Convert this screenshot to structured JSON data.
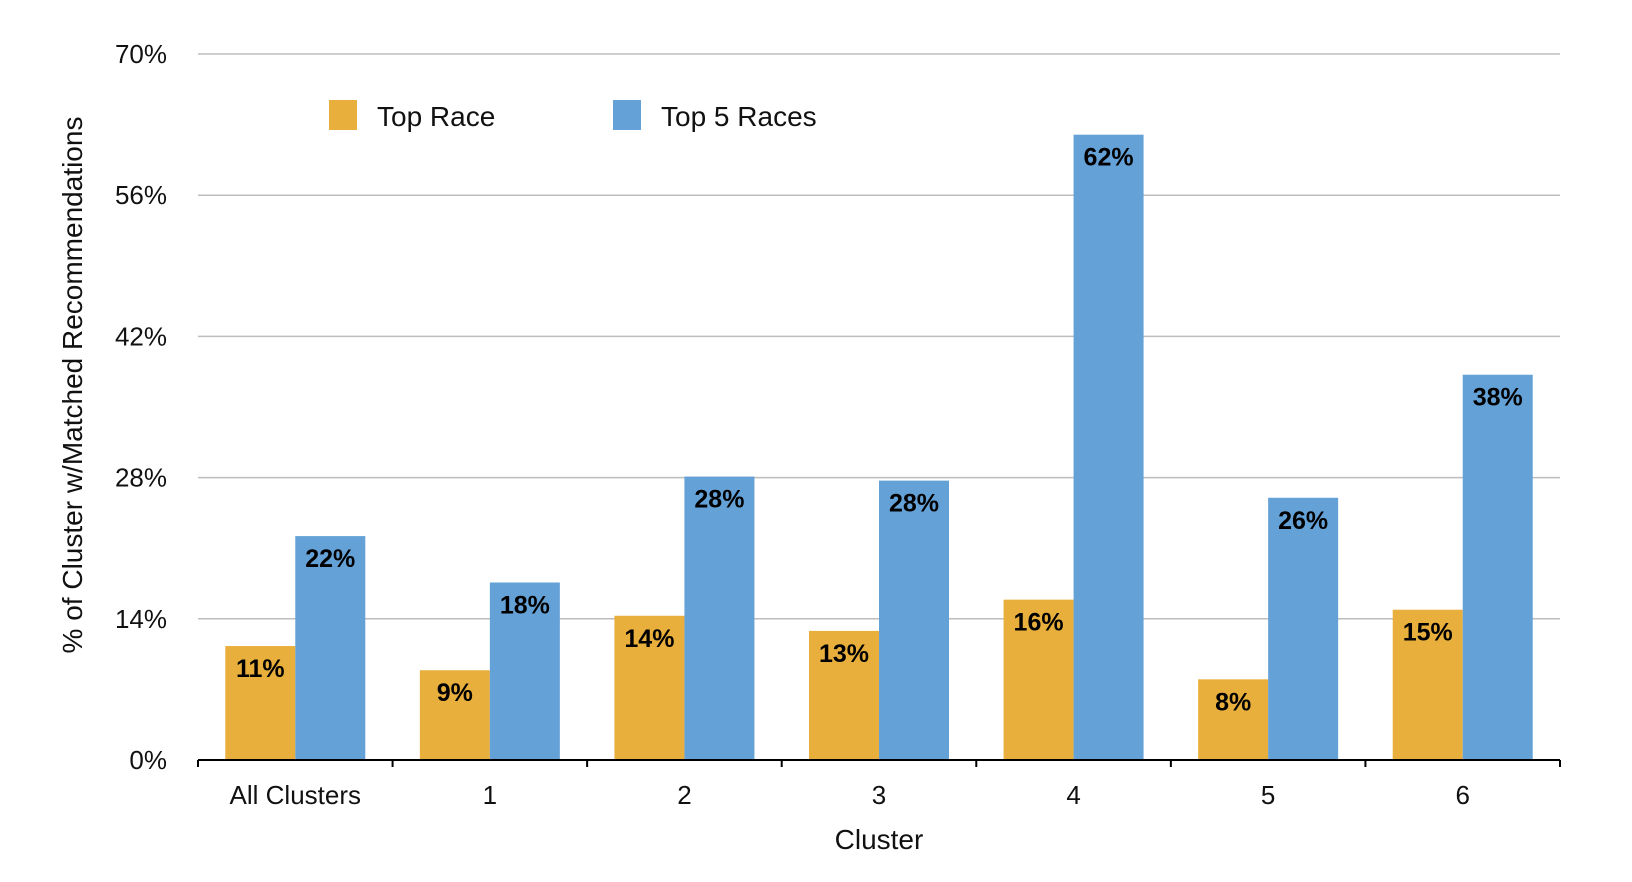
{
  "chart_data": {
    "type": "bar",
    "title": "",
    "xlabel": "Cluster",
    "ylabel": "% of Cluster w/Matched Recommendations",
    "categories": [
      "All Clusters",
      "1",
      "2",
      "3",
      "4",
      "5",
      "6"
    ],
    "series": [
      {
        "name": "Top Race",
        "color": "#E9AF3C",
        "values": [
          11.3,
          8.9,
          14.3,
          12.8,
          15.9,
          8.0,
          14.9
        ],
        "labels": [
          "11%",
          "9%",
          "14%",
          "13%",
          "16%",
          "8%",
          "15%"
        ]
      },
      {
        "name": "Top 5 Races",
        "color": "#64A1D6",
        "values": [
          22.2,
          17.6,
          28.1,
          27.7,
          62.0,
          26.0,
          38.2
        ],
        "labels": [
          "22%",
          "18%",
          "28%",
          "28%",
          "62%",
          "26%",
          "38%"
        ]
      }
    ],
    "ylim": [
      0,
      70
    ],
    "yticks": [
      0,
      14,
      28,
      42,
      56,
      70
    ],
    "ytick_labels": [
      "0%",
      "14%",
      "28%",
      "42%",
      "56%",
      "70%"
    ],
    "grid": true,
    "legend": "top-left"
  }
}
